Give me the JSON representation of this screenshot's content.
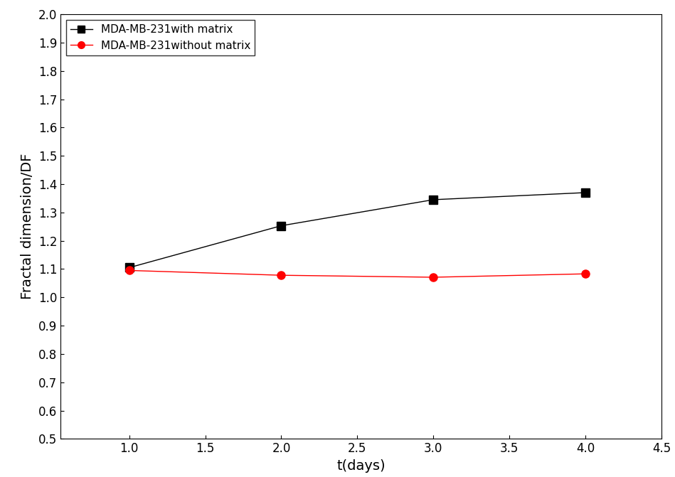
{
  "chart_data": {
    "type": "line",
    "x_label": "t(days)",
    "y_label": "Fractal dimension/DF",
    "xlim": [
      0.55,
      4.5
    ],
    "xticks": [
      1.0,
      1.5,
      2.0,
      2.5,
      3.0,
      3.5,
      4.0,
      4.5
    ],
    "ylim": [
      0.5,
      2.0
    ],
    "yticks": [
      0.5,
      0.6,
      0.7,
      0.8,
      0.9,
      1.0,
      1.1,
      1.2,
      1.3,
      1.4,
      1.5,
      1.6,
      1.7,
      1.8,
      1.9,
      2.0
    ],
    "legend": "upper left",
    "grid": false,
    "series": [
      {
        "name": "MDA-MB-231with matrix",
        "color": "#000000",
        "marker": "square",
        "line_style": "solid",
        "x": [
          1.0,
          2.0,
          3.0,
          4.0
        ],
        "values": [
          1.105,
          1.253,
          1.345,
          1.37
        ]
      },
      {
        "name": "MDA-MB-231without matrix",
        "color": "#ff0000",
        "marker": "circle",
        "line_style": "solid",
        "x": [
          1.0,
          2.0,
          3.0,
          4.0
        ],
        "values": [
          1.095,
          1.078,
          1.071,
          1.083
        ]
      }
    ]
  }
}
